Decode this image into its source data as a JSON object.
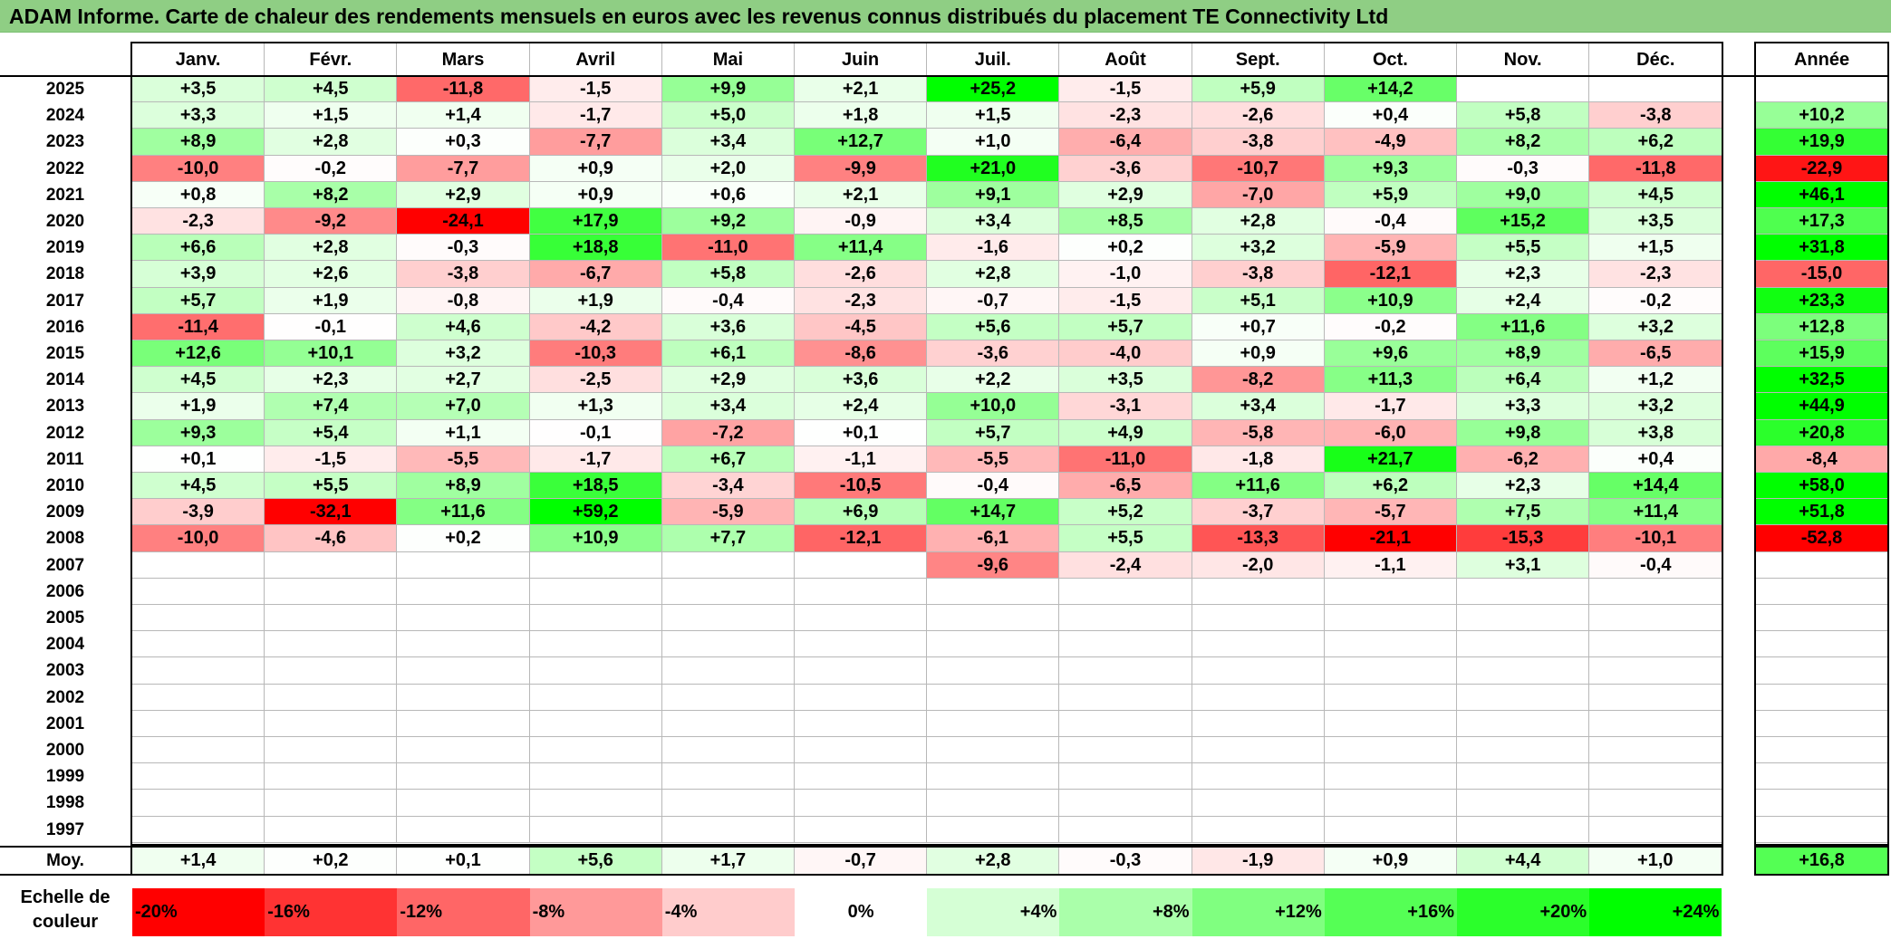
{
  "title": "ADAM Informe. Carte de chaleur des rendements mensuels en euros avec les revenus connus distribués du placement TE Connectivity Ltd",
  "chart_data": {
    "type": "heatmap",
    "title": "ADAM Informe. Carte de chaleur des rendements mensuels en euros avec les revenus connus distribués du placement TE Connectivity Ltd",
    "columns": [
      "Janv.",
      "Févr.",
      "Mars",
      "Avril",
      "Mai",
      "Juin",
      "Juil.",
      "Août",
      "Sept.",
      "Oct.",
      "Nov.",
      "Déc."
    ],
    "year_column_label": "Année",
    "rows": [
      {
        "year": "2025",
        "values": [
          "+3,5",
          "+4,5",
          "-11,8",
          "-1,5",
          "+9,9",
          "+2,1",
          "+25,2",
          "-1,5",
          "+5,9",
          "+14,2",
          "",
          ""
        ],
        "annual": ""
      },
      {
        "year": "2024",
        "values": [
          "+3,3",
          "+1,5",
          "+1,4",
          "-1,7",
          "+5,0",
          "+1,8",
          "+1,5",
          "-2,3",
          "-2,6",
          "+0,4",
          "+5,8",
          "-3,8"
        ],
        "annual": "+10,2"
      },
      {
        "year": "2023",
        "values": [
          "+8,9",
          "+2,8",
          "+0,3",
          "-7,7",
          "+3,4",
          "+12,7",
          "+1,0",
          "-6,4",
          "-3,8",
          "-4,9",
          "+8,2",
          "+6,2"
        ],
        "annual": "+19,9"
      },
      {
        "year": "2022",
        "values": [
          "-10,0",
          "-0,2",
          "-7,7",
          "+0,9",
          "+2,0",
          "-9,9",
          "+21,0",
          "-3,6",
          "-10,7",
          "+9,3",
          "-0,3",
          "-11,8"
        ],
        "annual": "-22,9"
      },
      {
        "year": "2021",
        "values": [
          "+0,8",
          "+8,2",
          "+2,9",
          "+0,9",
          "+0,6",
          "+2,1",
          "+9,1",
          "+2,9",
          "-7,0",
          "+5,9",
          "+9,0",
          "+4,5"
        ],
        "annual": "+46,1"
      },
      {
        "year": "2020",
        "values": [
          "-2,3",
          "-9,2",
          "-24,1",
          "+17,9",
          "+9,2",
          "-0,9",
          "+3,4",
          "+8,5",
          "+2,8",
          "-0,4",
          "+15,2",
          "+3,5"
        ],
        "annual": "+17,3"
      },
      {
        "year": "2019",
        "values": [
          "+6,6",
          "+2,8",
          "-0,3",
          "+18,8",
          "-11,0",
          "+11,4",
          "-1,6",
          "+0,2",
          "+3,2",
          "-5,9",
          "+5,5",
          "+1,5"
        ],
        "annual": "+31,8"
      },
      {
        "year": "2018",
        "values": [
          "+3,9",
          "+2,6",
          "-3,8",
          "-6,7",
          "+5,8",
          "-2,6",
          "+2,8",
          "-1,0",
          "-3,8",
          "-12,1",
          "+2,3",
          "-2,3"
        ],
        "annual": "-15,0"
      },
      {
        "year": "2017",
        "values": [
          "+5,7",
          "+1,9",
          "-0,8",
          "+1,9",
          "-0,4",
          "-2,3",
          "-0,7",
          "-1,5",
          "+5,1",
          "+10,9",
          "+2,4",
          "-0,2"
        ],
        "annual": "+23,3"
      },
      {
        "year": "2016",
        "values": [
          "-11,4",
          "-0,1",
          "+4,6",
          "-4,2",
          "+3,6",
          "-4,5",
          "+5,6",
          "+5,7",
          "+0,7",
          "-0,2",
          "+11,6",
          "+3,2"
        ],
        "annual": "+12,8"
      },
      {
        "year": "2015",
        "values": [
          "+12,6",
          "+10,1",
          "+3,2",
          "-10,3",
          "+6,1",
          "-8,6",
          "-3,6",
          "-4,0",
          "+0,9",
          "+9,6",
          "+8,9",
          "-6,5"
        ],
        "annual": "+15,9"
      },
      {
        "year": "2014",
        "values": [
          "+4,5",
          "+2,3",
          "+2,7",
          "-2,5",
          "+2,9",
          "+3,6",
          "+2,2",
          "+3,5",
          "-8,2",
          "+11,3",
          "+6,4",
          "+1,2"
        ],
        "annual": "+32,5"
      },
      {
        "year": "2013",
        "values": [
          "+1,9",
          "+7,4",
          "+7,0",
          "+1,3",
          "+3,4",
          "+2,4",
          "+10,0",
          "-3,1",
          "+3,4",
          "-1,7",
          "+3,3",
          "+3,2"
        ],
        "annual": "+44,9"
      },
      {
        "year": "2012",
        "values": [
          "+9,3",
          "+5,4",
          "+1,1",
          "-0,1",
          "-7,2",
          "+0,1",
          "+5,7",
          "+4,9",
          "-5,8",
          "-6,0",
          "+9,8",
          "+3,8"
        ],
        "annual": "+20,8"
      },
      {
        "year": "2011",
        "values": [
          "+0,1",
          "-1,5",
          "-5,5",
          "-1,7",
          "+6,7",
          "-1,1",
          "-5,5",
          "-11,0",
          "-1,8",
          "+21,7",
          "-6,2",
          "+0,4"
        ],
        "annual": "-8,4"
      },
      {
        "year": "2010",
        "values": [
          "+4,5",
          "+5,5",
          "+8,9",
          "+18,5",
          "-3,4",
          "-10,5",
          "-0,4",
          "-6,5",
          "+11,6",
          "+6,2",
          "+2,3",
          "+14,4"
        ],
        "annual": "+58,0"
      },
      {
        "year": "2009",
        "values": [
          "-3,9",
          "-32,1",
          "+11,6",
          "+59,2",
          "-5,9",
          "+6,9",
          "+14,7",
          "+5,2",
          "-3,7",
          "-5,7",
          "+7,5",
          "+11,4"
        ],
        "annual": "+51,8"
      },
      {
        "year": "2008",
        "values": [
          "-10,0",
          "-4,6",
          "+0,2",
          "+10,9",
          "+7,7",
          "-12,1",
          "-6,1",
          "+5,5",
          "-13,3",
          "-21,1",
          "-15,3",
          "-10,1"
        ],
        "annual": "-52,8"
      },
      {
        "year": "2007",
        "values": [
          "",
          "",
          "",
          "",
          "",
          "",
          "-9,6",
          "-2,4",
          "-2,0",
          "-1,1",
          "+3,1",
          "-0,4"
        ],
        "annual": ""
      },
      {
        "year": "2006",
        "values": [
          "",
          "",
          "",
          "",
          "",
          "",
          "",
          "",
          "",
          "",
          "",
          ""
        ],
        "annual": ""
      },
      {
        "year": "2005",
        "values": [
          "",
          "",
          "",
          "",
          "",
          "",
          "",
          "",
          "",
          "",
          "",
          ""
        ],
        "annual": ""
      },
      {
        "year": "2004",
        "values": [
          "",
          "",
          "",
          "",
          "",
          "",
          "",
          "",
          "",
          "",
          "",
          ""
        ],
        "annual": ""
      },
      {
        "year": "2003",
        "values": [
          "",
          "",
          "",
          "",
          "",
          "",
          "",
          "",
          "",
          "",
          "",
          ""
        ],
        "annual": ""
      },
      {
        "year": "2002",
        "values": [
          "",
          "",
          "",
          "",
          "",
          "",
          "",
          "",
          "",
          "",
          "",
          ""
        ],
        "annual": ""
      },
      {
        "year": "2001",
        "values": [
          "",
          "",
          "",
          "",
          "",
          "",
          "",
          "",
          "",
          "",
          "",
          ""
        ],
        "annual": ""
      },
      {
        "year": "2000",
        "values": [
          "",
          "",
          "",
          "",
          "",
          "",
          "",
          "",
          "",
          "",
          "",
          ""
        ],
        "annual": ""
      },
      {
        "year": "1999",
        "values": [
          "",
          "",
          "",
          "",
          "",
          "",
          "",
          "",
          "",
          "",
          "",
          ""
        ],
        "annual": ""
      },
      {
        "year": "1998",
        "values": [
          "",
          "",
          "",
          "",
          "",
          "",
          "",
          "",
          "",
          "",
          "",
          ""
        ],
        "annual": ""
      },
      {
        "year": "1997",
        "values": [
          "",
          "",
          "",
          "",
          "",
          "",
          "",
          "",
          "",
          "",
          "",
          ""
        ],
        "annual": ""
      }
    ],
    "average": {
      "label": "Moy.",
      "values": [
        "+1,4",
        "+0,2",
        "+0,1",
        "+5,6",
        "+1,7",
        "-0,7",
        "+2,8",
        "-0,3",
        "-1,9",
        "+0,9",
        "+4,4",
        "+1,0"
      ],
      "annual": "+16,8"
    },
    "color_scale": {
      "label": "Echelle de couleur",
      "stops": [
        {
          "label": "-20%",
          "value": -20
        },
        {
          "label": "-16%",
          "value": -16
        },
        {
          "label": "-12%",
          "value": -12
        },
        {
          "label": "-8%",
          "value": -8
        },
        {
          "label": "-4%",
          "value": -4
        },
        {
          "label": "0%",
          "value": 0
        },
        {
          "label": "+4%",
          "value": 4
        },
        {
          "label": "+8%",
          "value": 8
        },
        {
          "label": "+12%",
          "value": 12
        },
        {
          "label": "+16%",
          "value": 16
        },
        {
          "label": "+20%",
          "value": 20
        },
        {
          "label": "+24%",
          "value": 24
        }
      ],
      "negative_color": "#ff0000",
      "positive_color": "#00ff00",
      "neutral_color": "#ffffff",
      "monthly_range": [
        -20,
        24
      ],
      "annual_range": [
        -50,
        50
      ]
    }
  }
}
